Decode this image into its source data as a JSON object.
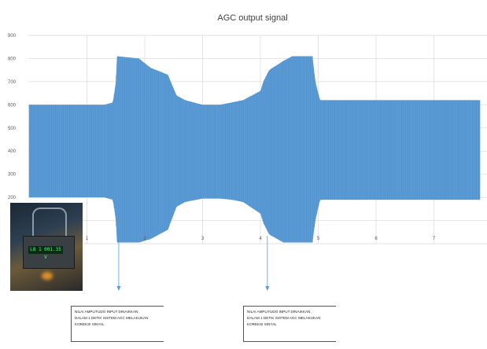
{
  "chart_data": {
    "type": "area",
    "title": "AGC output signal",
    "xlabel": "",
    "ylabel": "",
    "xlim": [
      0,
      7.8
    ],
    "ylim": [
      0,
      900
    ],
    "x_ticks": [
      "1",
      "2",
      "3",
      "4",
      "5",
      "6",
      "7"
    ],
    "y_ticks": [
      "900",
      "800",
      "700",
      "600",
      "500",
      "400",
      "300",
      "200"
    ],
    "grid": true,
    "colors": {
      "signal": "#5b9bd5",
      "grid": "#d9d9d9",
      "arrow": "#5b9bd5"
    },
    "series": [
      {
        "envelope_x": [
          0.0,
          1.3,
          1.45,
          1.5,
          1.52,
          1.9,
          2.1,
          2.4,
          2.55,
          2.7,
          3.0,
          3.3,
          3.5,
          3.7,
          4.0,
          4.05,
          4.15,
          4.4,
          4.55,
          4.9,
          4.95,
          5.03,
          5.1,
          6.0,
          7.8
        ],
        "upper": [
          600,
          600,
          610,
          700,
          810,
          800,
          760,
          730,
          640,
          620,
          600,
          600,
          610,
          620,
          660,
          700,
          750,
          790,
          810,
          810,
          700,
          620,
          620,
          620,
          620
        ],
        "lower": [
          200,
          200,
          190,
          100,
          5,
          5,
          20,
          60,
          160,
          180,
          195,
          195,
          190,
          180,
          130,
          90,
          40,
          5,
          5,
          5,
          100,
          190,
          190,
          190,
          190
        ]
      }
    ]
  },
  "photo": {
    "display_text": "L8 1 001.35 V"
  },
  "annotations": [
    {
      "lines": [
        "NILAI AMPLITUDO INPUT DINAIKKAN,",
        "DALAM 1 DETIK SISTEM AGC MELAKUKAN",
        "KOREKSI SINYAL"
      ]
    },
    {
      "lines": [
        "NILAI AMPLITUDO INPUT DINAIKKAN,",
        "DALAM 1 DETIK SISTEM AGC MELAKUKAN",
        "KOREKSI SINYAL"
      ]
    }
  ]
}
